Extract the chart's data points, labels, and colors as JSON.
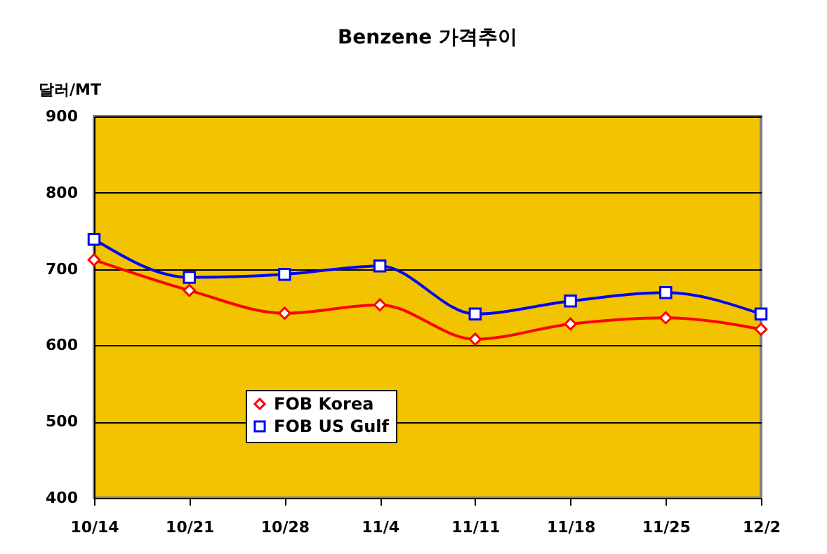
{
  "chart_data": {
    "type": "line",
    "title": "Benzene 가격추이",
    "ylabel": "달러/MT",
    "categories": [
      "10/14",
      "10/21",
      "10/28",
      "11/4",
      "11/11",
      "11/18",
      "11/25",
      "12/2"
    ],
    "series": [
      {
        "name": "FOB Korea",
        "color": "#ff0000",
        "marker": "diamond",
        "values": [
          712,
          672,
          642,
          653,
          608,
          628,
          636,
          621
        ]
      },
      {
        "name": "FOB US Gulf",
        "color": "#0000ff",
        "marker": "square",
        "values": [
          739,
          689,
          693,
          704,
          641,
          658,
          669,
          641
        ]
      }
    ],
    "ylim": [
      400,
      900
    ],
    "yticks": [
      400,
      500,
      600,
      700,
      800,
      900
    ],
    "grid": "y",
    "legend": "bottom left",
    "line_style": "solid"
  }
}
